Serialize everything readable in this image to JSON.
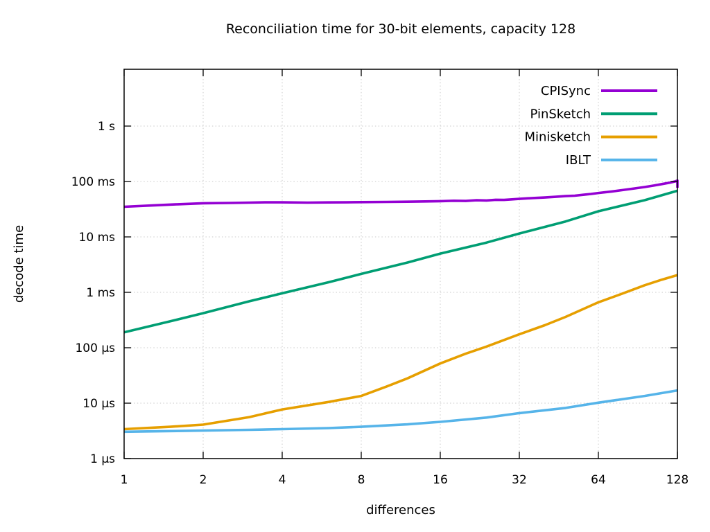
{
  "chart_data": {
    "type": "line",
    "title": "Reconciliation time for 30-bit elements, capacity 128",
    "xlabel": "differences",
    "ylabel": "decode time",
    "x_scale": "log2",
    "y_scale": "log10",
    "grid": true,
    "legend_position": "top-right",
    "xlim": [
      1,
      128
    ],
    "ylim_seconds": [
      1e-06,
      10
    ],
    "x_ticks": [
      {
        "label": "1",
        "value": 1
      },
      {
        "label": "2",
        "value": 2
      },
      {
        "label": "4",
        "value": 4
      },
      {
        "label": "8",
        "value": 8
      },
      {
        "label": "16",
        "value": 16
      },
      {
        "label": "32",
        "value": 32
      },
      {
        "label": "64",
        "value": 64
      },
      {
        "label": "128",
        "value": 128
      }
    ],
    "y_ticks": [
      {
        "label": "1 s",
        "us": 1000000
      },
      {
        "label": "100 ms",
        "us": 100000
      },
      {
        "label": "10 ms",
        "us": 10000
      },
      {
        "label": "1 ms",
        "us": 1000
      },
      {
        "label": "100 µs",
        "us": 100
      },
      {
        "label": "10 µs",
        "us": 10
      },
      {
        "label": "1 µs",
        "us": 1
      }
    ],
    "series": [
      {
        "name": "CPISync",
        "color": "#9400d3",
        "points_us": [
          [
            1,
            35000
          ],
          [
            1.3,
            37200
          ],
          [
            1.6,
            38800
          ],
          [
            2,
            40500
          ],
          [
            2.5,
            41000
          ],
          [
            3,
            41600
          ],
          [
            3.5,
            42200
          ],
          [
            4,
            42000
          ],
          [
            5,
            41600
          ],
          [
            6,
            41900
          ],
          [
            7,
            42100
          ],
          [
            8,
            42400
          ],
          [
            10,
            42800
          ],
          [
            12,
            43200
          ],
          [
            14,
            43700
          ],
          [
            16,
            44200
          ],
          [
            18,
            44900
          ],
          [
            20,
            44500
          ],
          [
            22,
            45800
          ],
          [
            24,
            45400
          ],
          [
            26,
            46800
          ],
          [
            28,
            46500
          ],
          [
            30,
            47600
          ],
          [
            32,
            48500
          ],
          [
            36,
            50200
          ],
          [
            40,
            51500
          ],
          [
            44,
            53000
          ],
          [
            48,
            54500
          ],
          [
            52,
            55500
          ],
          [
            56,
            57500
          ],
          [
            60,
            59500
          ],
          [
            64,
            62000
          ],
          [
            72,
            66000
          ],
          [
            80,
            70500
          ],
          [
            88,
            75000
          ],
          [
            96,
            79500
          ],
          [
            104,
            84500
          ],
          [
            112,
            90000
          ],
          [
            120,
            95500
          ],
          [
            126,
            101000
          ],
          [
            128,
            104000
          ],
          [
            128,
            77000
          ]
        ]
      },
      {
        "name": "PinSketch",
        "color": "#009e73",
        "points_us": [
          [
            1,
            190
          ],
          [
            1.5,
            300
          ],
          [
            2,
            420
          ],
          [
            3,
            690
          ],
          [
            4,
            960
          ],
          [
            6,
            1520
          ],
          [
            8,
            2150
          ],
          [
            12,
            3450
          ],
          [
            16,
            5000
          ],
          [
            24,
            7900
          ],
          [
            32,
            11500
          ],
          [
            48,
            19000
          ],
          [
            64,
            29000
          ],
          [
            96,
            46000
          ],
          [
            128,
            68000
          ]
        ]
      },
      {
        "name": "Minisketch",
        "color": "#e69f00",
        "points_us": [
          [
            1,
            3.4
          ],
          [
            1.5,
            3.75
          ],
          [
            2,
            4.1
          ],
          [
            3,
            5.6
          ],
          [
            4,
            7.7
          ],
          [
            6,
            10.5
          ],
          [
            8,
            13.5
          ],
          [
            10,
            20
          ],
          [
            12,
            28
          ],
          [
            16,
            52
          ],
          [
            20,
            78
          ],
          [
            24,
            105
          ],
          [
            32,
            175
          ],
          [
            40,
            255
          ],
          [
            48,
            360
          ],
          [
            64,
            660
          ],
          [
            80,
            970
          ],
          [
            96,
            1340
          ],
          [
            112,
            1700
          ],
          [
            128,
            2050
          ]
        ]
      },
      {
        "name": "IBLT",
        "color": "#56b4e9",
        "points_us": [
          [
            1,
            3.05
          ],
          [
            2,
            3.2
          ],
          [
            3,
            3.3
          ],
          [
            4,
            3.4
          ],
          [
            6,
            3.55
          ],
          [
            8,
            3.75
          ],
          [
            12,
            4.15
          ],
          [
            16,
            4.6
          ],
          [
            24,
            5.5
          ],
          [
            32,
            6.6
          ],
          [
            48,
            8.2
          ],
          [
            64,
            10.2
          ],
          [
            96,
            13.5
          ],
          [
            128,
            17
          ]
        ]
      }
    ]
  }
}
